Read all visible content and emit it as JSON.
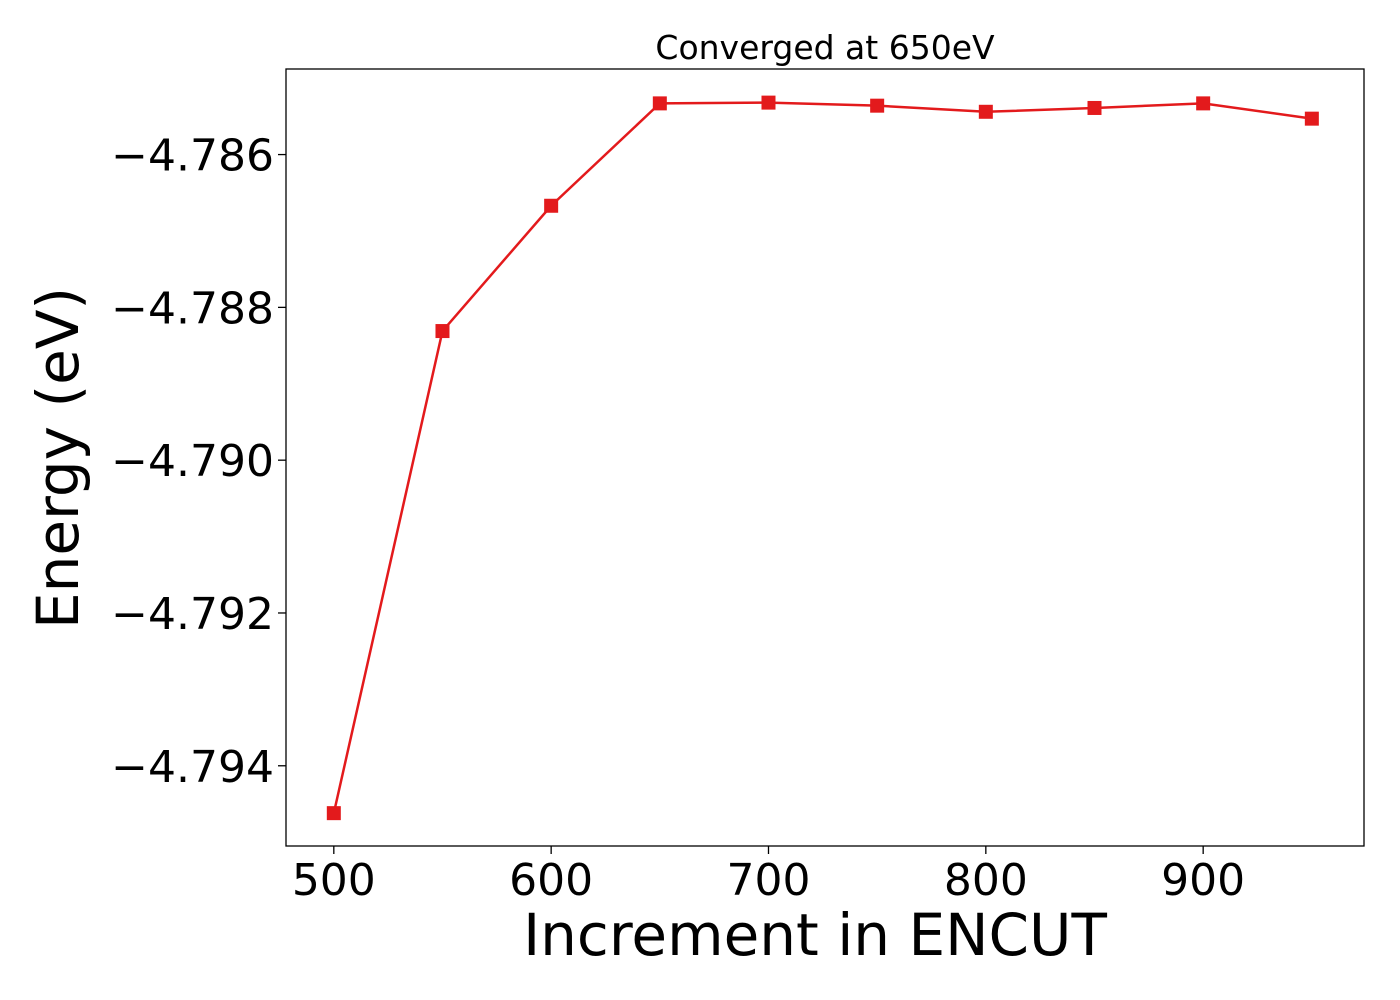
{
  "chart_data": {
    "type": "line",
    "title": "Converged at 650eV",
    "xlabel": "Increment in ENCUT",
    "ylabel": "Energy (eV)",
    "x": [
      500,
      550,
      600,
      650,
      700,
      750,
      800,
      850,
      900,
      950
    ],
    "series": [
      {
        "values": [
          -4.79462,
          -4.78831,
          -4.78667,
          -4.78533,
          -4.78532,
          -4.78536,
          -4.78544,
          -4.78539,
          -4.78533,
          -4.78553
        ],
        "color": "#e31a1c",
        "marker": "square"
      }
    ],
    "xlim": [
      478,
      974
    ],
    "ylim": [
      -4.79505,
      -4.78488
    ],
    "xticks": [
      500,
      600,
      700,
      800,
      900
    ],
    "xtick_labels": [
      "500",
      "600",
      "700",
      "800",
      "900"
    ],
    "yticks": [
      -4.786,
      -4.788,
      -4.79,
      -4.792,
      -4.794
    ],
    "ytick_labels": [
      "−4.786",
      "−4.788",
      "−4.790",
      "−4.792",
      "−4.794"
    ],
    "grid": false,
    "legend": false
  }
}
